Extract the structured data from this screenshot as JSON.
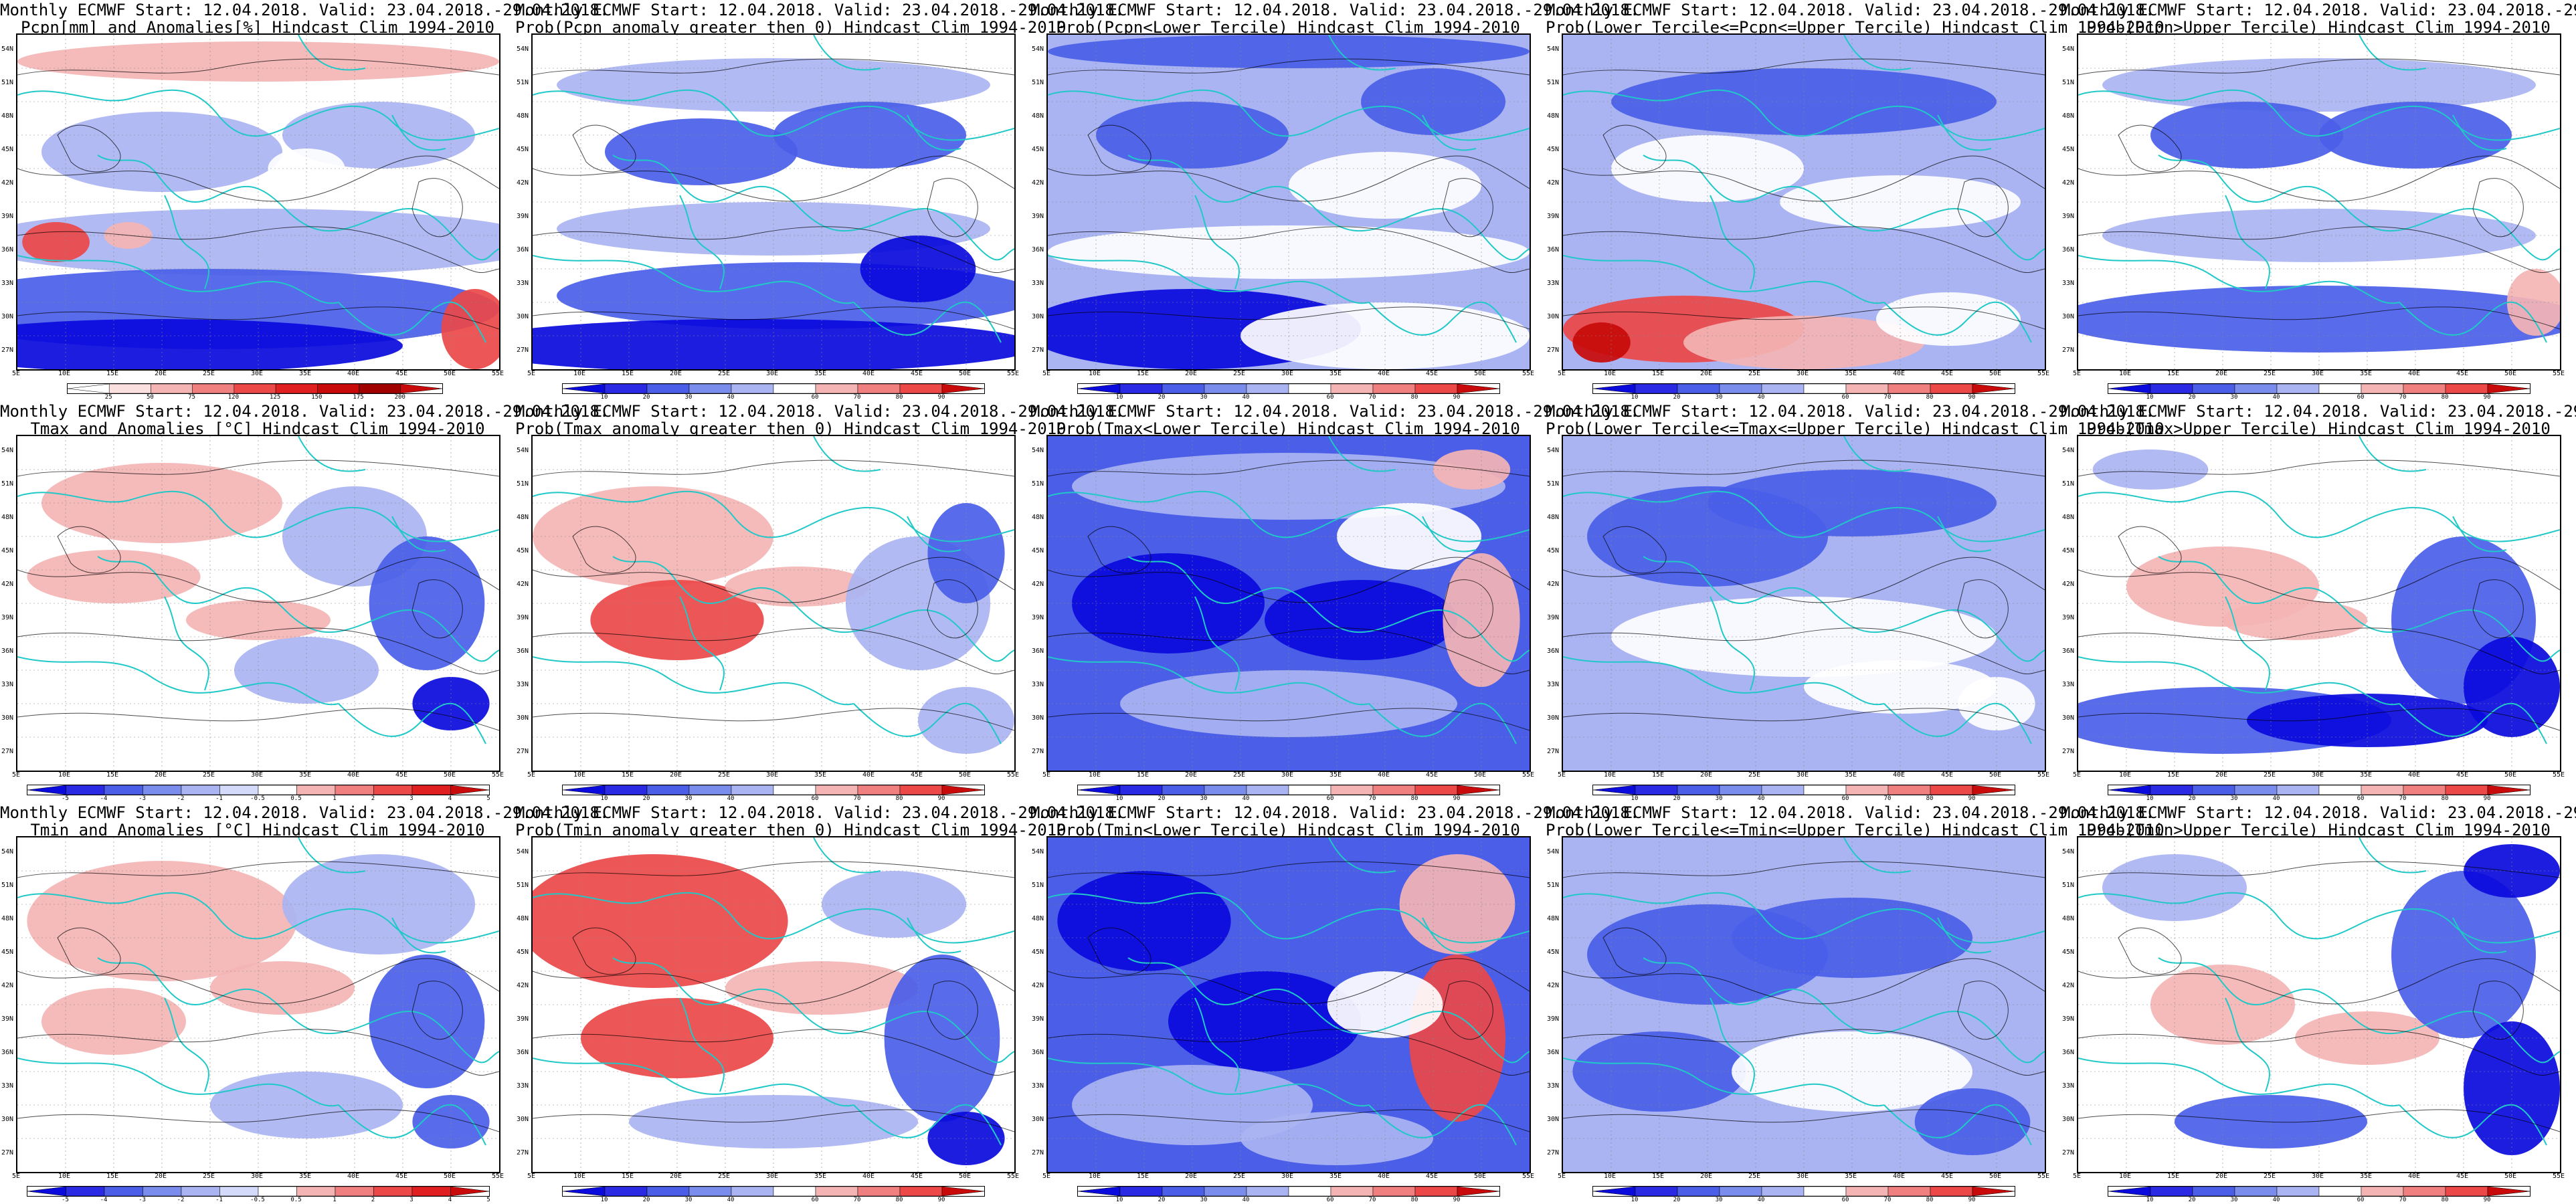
{
  "header_line1": "Monthly ECMWF Start: 12.04.2018. Valid: 23.04.2018.-29.04.2018.",
  "lat_labels": [
    "54N",
    "51N",
    "48N",
    "45N",
    "42N",
    "39N",
    "36N",
    "33N",
    "30N",
    "27N"
  ],
  "lon_labels": [
    "5E",
    "10E",
    "15E",
    "20E",
    "25E",
    "30E",
    "35E",
    "40E",
    "45E",
    "50E",
    "55E"
  ],
  "anomaly_ticks_pcpn": [
    "25",
    "50",
    "75",
    "120",
    "125",
    "150",
    "175",
    "200"
  ],
  "anomaly_ticks_temp": [
    "-5",
    "-4",
    "-3",
    "-2",
    "-1",
    "-0.5",
    "0.5",
    "1",
    "2",
    "3",
    "4",
    "5"
  ],
  "prob_ticks": [
    "10",
    "20",
    "30",
    "40",
    "60",
    "70",
    "80",
    "90"
  ],
  "colors": {
    "dark_blue": "#0a0adc",
    "blue": "#4a5ee8",
    "light_blue": "#aab4f2",
    "white": "#ffffff",
    "light_red": "#f4b4b4",
    "red": "#ec4848",
    "dark_red": "#c80a0a",
    "coastline": "#20c8c8",
    "contour": "#000000"
  },
  "rows": [
    {
      "variable": "precipitation",
      "panels": [
        {
          "title2": "Pcpn[mm] and Anomalies[%] Hindcast Clim 1994-2010",
          "kind": "anomaly",
          "pattern": "pcpn_anom"
        },
        {
          "title2": "Prob(Pcpn anomaly greater then 0) Hindcast Clim 1994-2010",
          "kind": "prob",
          "pattern": "pcpn_gt0"
        },
        {
          "title2": "Prob(Pcpn<Lower Tercile) Hindcast Clim 1994-2010",
          "kind": "prob",
          "pattern": "pcpn_low"
        },
        {
          "title2": "Prob(Lower Tercile<=Pcpn<=Upper Tercile) Hindcast Clim 1994-2010",
          "kind": "prob",
          "pattern": "pcpn_mid"
        },
        {
          "title2": "Prob(Pcpn>Upper Tercile) Hindcast Clim 1994-2010",
          "kind": "prob",
          "pattern": "pcpn_up"
        }
      ]
    },
    {
      "variable": "tmax",
      "panels": [
        {
          "title2": "Tmax and Anomalies [°C] Hindcast Clim 1994-2010",
          "kind": "anomaly",
          "pattern": "tmax_anom"
        },
        {
          "title2": "Prob(Tmax anomaly greater then 0) Hindcast Clim 1994-2010",
          "kind": "prob",
          "pattern": "tmax_gt0"
        },
        {
          "title2": "Prob(Tmax<Lower Tercile) Hindcast Clim 1994-2010",
          "kind": "prob",
          "pattern": "tmax_low"
        },
        {
          "title2": "Prob(Lower Tercile<=Tmax<=Upper Tercile) Hindcast Clim 1994-2010",
          "kind": "prob",
          "pattern": "tmax_mid"
        },
        {
          "title2": "Prob(Tmax>Upper Tercile) Hindcast Clim 1994-2010",
          "kind": "prob",
          "pattern": "tmax_up"
        }
      ]
    },
    {
      "variable": "tmin",
      "panels": [
        {
          "title2": "Tmin and Anomalies [°C] Hindcast Clim 1994-2010",
          "kind": "anomaly",
          "pattern": "tmin_anom"
        },
        {
          "title2": "Prob(Tmin anomaly greater then 0) Hindcast Clim 1994-2010",
          "kind": "prob",
          "pattern": "tmin_gt0"
        },
        {
          "title2": "Prob(Tmin<Lower Tercile) Hindcast Clim 1994-2010",
          "kind": "prob",
          "pattern": "tmin_low"
        },
        {
          "title2": "Prob(Lower Tercile<=Tmin<=Upper Tercile) Hindcast Clim 1994-2010",
          "kind": "prob",
          "pattern": "tmin_mid"
        },
        {
          "title2": "Prob(Tmin>Upper Tercile) Hindcast Clim 1994-2010",
          "kind": "prob",
          "pattern": "tmin_up"
        }
      ]
    }
  ]
}
